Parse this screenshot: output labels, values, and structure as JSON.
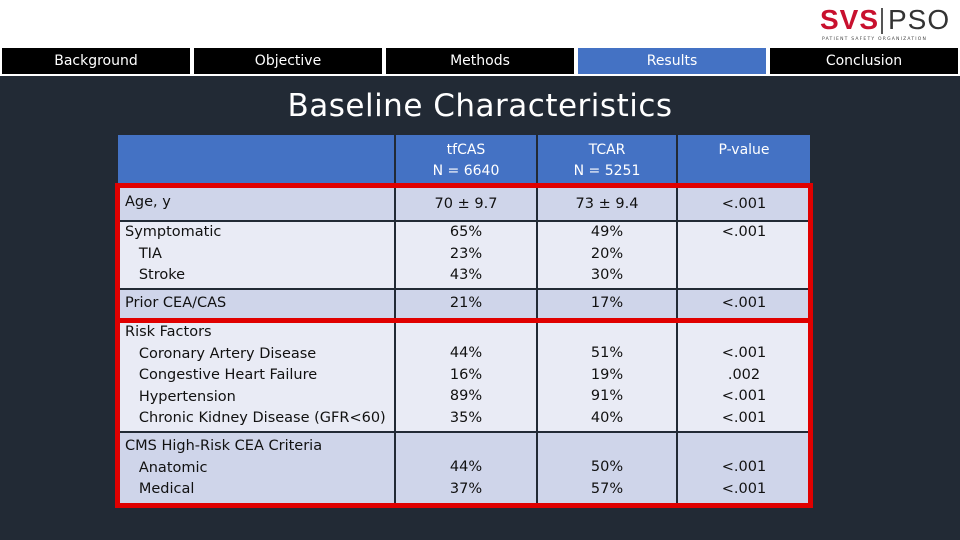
{
  "logo": {
    "brand_left": "SVS",
    "brand_right": "PSO",
    "tagline": "PATIENT SAFETY ORGANIZATION"
  },
  "nav": {
    "items": [
      "Background",
      "Objective",
      "Methods",
      "Results",
      "Conclusion"
    ],
    "active": "Results"
  },
  "slide": {
    "title": "Baseline Characteristics"
  },
  "table": {
    "headers": {
      "label": "",
      "tfcas": "tfCAS\nN = 6640",
      "tcar": "TCAR\nN = 5251",
      "pvalue": "P-value"
    },
    "rows": [
      {
        "label": "Age, y",
        "tfcas": "70 ± 9.7",
        "tcar": "73 ± 9.4",
        "p": "<.001"
      },
      {
        "label": "Symptomatic\n   TIA\n   Stroke",
        "tfcas": "65%\n23%\n43%",
        "tcar": "49%\n20%\n30%",
        "p": "<.001\n\n"
      },
      {
        "label": "Prior CEA/CAS",
        "tfcas": "21%",
        "tcar": "17%",
        "p": "<.001"
      },
      {
        "label": "Risk Factors\n   Coronary Artery Disease\n   Congestive Heart Failure\n   Hypertension\n   Chronic Kidney Disease (GFR<60)",
        "tfcas": "44%\n16%\n89%\n35%",
        "tcar": "51%\n19%\n91%\n40%",
        "p": "<.001\n.002\n<.001\n<.001"
      },
      {
        "label": "CMS High-Risk CEA Criteria\n   Anatomic\n   Medical",
        "tfcas": "44%\n37%",
        "tcar": "50%\n57%",
        "p": "<.001\n<.001"
      }
    ]
  },
  "colors": {
    "background": "#222a35",
    "header_blue": "#4472c4",
    "row_dark": "#cfd5ea",
    "row_light": "#e9ebf5",
    "highlight_red": "#e00000",
    "brand_red": "#c8102e"
  }
}
